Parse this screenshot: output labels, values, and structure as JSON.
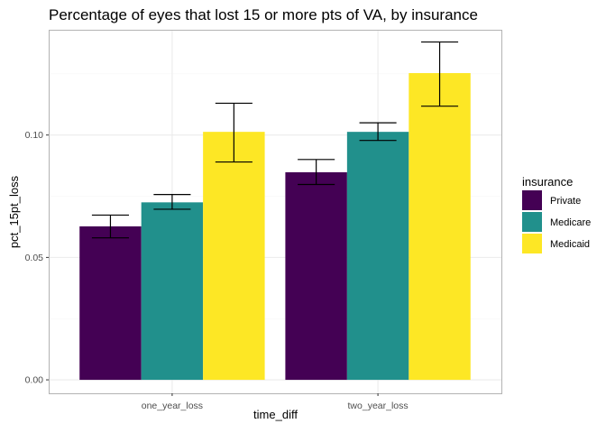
{
  "chart_data": {
    "type": "bar",
    "title": "Percentage of eyes that lost 15 or more pts of VA, by insurance",
    "xlabel": "time_diff",
    "ylabel": "pct_15pt_loss",
    "categories": [
      "one_year_loss",
      "two_year_loss"
    ],
    "ylim": [
      -0.0055,
      0.143
    ],
    "yticks": [
      0.0,
      0.05,
      0.1
    ],
    "ytick_labels": [
      "0.00",
      "0.05",
      "0.10"
    ],
    "grid": true,
    "legend": {
      "title": "insurance",
      "position": "right"
    },
    "series": [
      {
        "name": "Private",
        "color": "#440154",
        "values": [
          0.0627,
          0.0848
        ],
        "err_low": [
          0.058,
          0.0798
        ],
        "err_high": [
          0.0673,
          0.09
        ]
      },
      {
        "name": "Medicare",
        "color": "#21908C",
        "values": [
          0.0725,
          0.1013
        ],
        "err_low": [
          0.0697,
          0.0978
        ],
        "err_high": [
          0.0757,
          0.105
        ]
      },
      {
        "name": "Medicaid",
        "color": "#FDE725",
        "values": [
          0.1013,
          0.1253
        ],
        "err_low": [
          0.089,
          0.1118
        ],
        "err_high": [
          0.113,
          0.138
        ]
      }
    ]
  }
}
